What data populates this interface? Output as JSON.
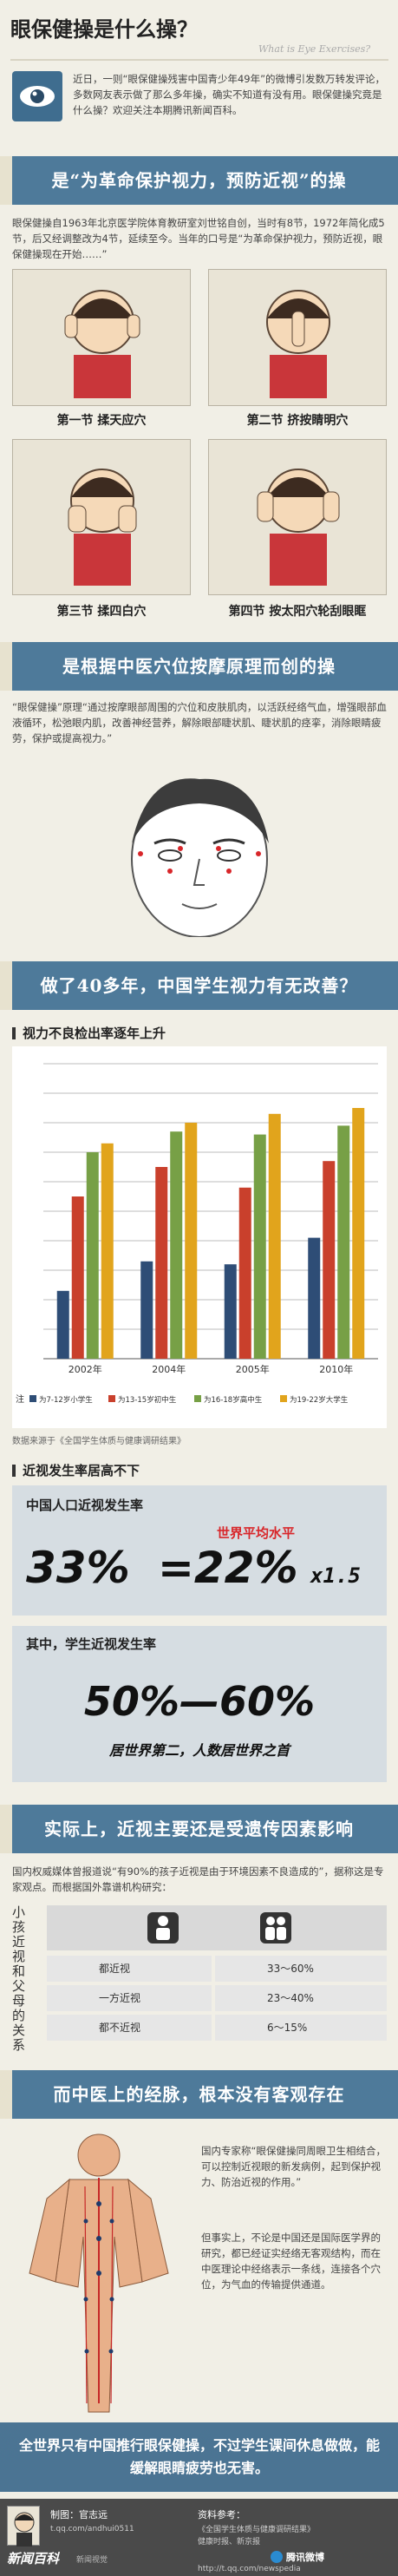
{
  "header": {
    "title": "眼保健操是什么操？",
    "subtitle": "What is Eye Exercises?"
  },
  "intro": {
    "text": "近日，一则“眼保健操残害中国青少年49年”的微博引发数万转发评论，多数网友表示做了那么多年操，确实不知道有没有用。眼保健操究竟是什么操？欢迎关注本期腾讯新闻百科。"
  },
  "section1": {
    "banner": "是“为革命保护视力，预防近视”的操",
    "text": "眼保健操自1963年北京医学院体育教研室刘世铭自创，当时有8节，1972年简化成5节，后又经调整改为4节，延续至今。当年的口号是“为革命保护视力，预防近视，眼保健操现在开始……”",
    "steps": [
      {
        "label": "第一节  揉天应穴"
      },
      {
        "label": "第二节  挤按睛明穴"
      },
      {
        "label": "第三节  揉四白穴"
      },
      {
        "label": "第四节  按太阳穴轮刮眼眶"
      }
    ]
  },
  "section2": {
    "banner": "是根据中医穴位按摩原理而创的操",
    "text": "“眼保健操”原理“通过按摩眼部周围的穴位和皮肤肌肉，以活跃经络气血，增强眼部血液循环，松弛眼内肌，改善神经营养，解除眼部睫状肌、睫状肌的痉挛，消除眼睛疲劳，保护或提高视力。”"
  },
  "section3": {
    "banner": "做了40多年，中国学生视力有无改善？",
    "chart_title": "视力不良检出率逐年上升",
    "source": "数据来源于《全国学生体质与健康调研结果》"
  },
  "chart_data": {
    "type": "bar",
    "title": "视力不良检出率逐年上升",
    "categories": [
      "2002年",
      "2004年",
      "2005年",
      "2010年"
    ],
    "ylim": [
      0,
      100
    ],
    "grid": true,
    "legend_position": "bottom",
    "series": [
      {
        "name": "为7-12岁小学生",
        "color": "#2e4d76",
        "values": [
          23,
          33,
          32,
          41
        ]
      },
      {
        "name": "为13-15岁初中生",
        "color": "#c9402c",
        "values": [
          55,
          65,
          58,
          67
        ]
      },
      {
        "name": "为16-18岁高中生",
        "color": "#77a046",
        "values": [
          70,
          77,
          76,
          79
        ]
      },
      {
        "name": "为19-22岁大学生",
        "color": "#e1a41c",
        "values": [
          73,
          80,
          83,
          85
        ]
      }
    ]
  },
  "section4": {
    "heading": "近视发生率居高不下",
    "box1_title": "中国人口近视发生率",
    "formula_left": "33%",
    "formula_eq": "=22%",
    "formula_mult": "x1.5",
    "world_label": "世界平均水平",
    "box2_title": "其中，学生近视发生率",
    "range": "50%—60%",
    "note": "居世界第二，人数居世界之首"
  },
  "section5": {
    "banner": "实际上，近视主要还是受遗传因素影响",
    "text": "国内权威媒体曾报道说“有90%的孩子近视是由于环境因素不良造成的”，据称这是专家观点。而根据国外靠谱机构研究：",
    "side_label": "小孩近视和父母的关系",
    "rows": [
      {
        "label": "都近视",
        "value": "33～60%"
      },
      {
        "label": "一方近视",
        "value": "23～40%"
      },
      {
        "label": "都不近视",
        "value": "6～15%"
      }
    ]
  },
  "section6": {
    "banner": "而中医上的经脉，根本没有客观存在",
    "text1": "国内专家称“眼保健操同周眼卫生相结合，可以控制近视眼的新发病例，起到保护视力、防治近视的作用。”",
    "text2": "但事实上，不论是中国还是国际医学界的研究，都已经证实经络无客观结构，而在中医理论中经络表示一条线，连接各个穴位，为气血的传输提供通道。"
  },
  "conclusion": {
    "text": "全世界只有中国推行眼保健操，不过学生课间休息做做，能缓解眼睛疲劳也无害。"
  },
  "footer": {
    "brand": "新闻百科",
    "brand_sub": "新闻视觉",
    "author_label": "制图：官志远",
    "author_weibo": "t.qq.com/andhui0511",
    "refs_label": "资料参考：",
    "refs": [
      "《全国学生体质与健康调研结果》",
      "健康时报、新京报"
    ],
    "tencent_weibo": "腾讯微博",
    "tencent_url": "http://t.qq.com/newspedia"
  },
  "colors": {
    "banner": "#4e7a9a",
    "page_bg": "#f1efe6",
    "accent_red": "#d8262a"
  }
}
